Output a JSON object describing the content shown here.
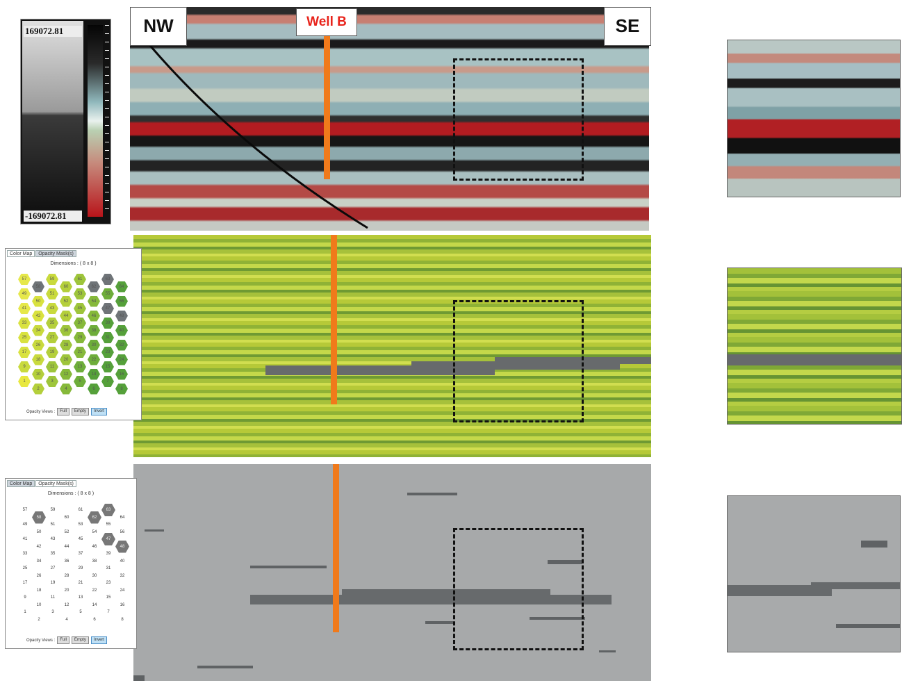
{
  "colorbar": {
    "max_label": "169072.81",
    "min_label": "-169072.81"
  },
  "labels": {
    "nw": "NW",
    "se": "SE",
    "well": "Well B"
  },
  "widget_color": {
    "tab_colormap": "Color Map",
    "tab_opacity": "Opacity Mask(s)",
    "dimensions": "Dimensions : ( 8 x 8 )",
    "opacity_label": "Opacity Views :",
    "btn_full": "Full",
    "btn_empty": "Empty",
    "btn_invert": "Invert"
  },
  "widget_mask": {
    "tab_colormap": "Color Map",
    "tab_opacity": "Opacity Mask(s)",
    "dimensions": "Dimensions : ( 8 x 8 )",
    "opacity_label": "Opacity Views :",
    "btn_full": "Full",
    "btn_empty": "Empty",
    "btn_invert": "Invert"
  },
  "hex_rows": [
    [
      "57",
      "59",
      "61",
      "63"
    ],
    [
      "58",
      "60",
      "62",
      "64"
    ],
    [
      "49",
      "51",
      "53",
      "55"
    ],
    [
      "50",
      "52",
      "54",
      "56"
    ],
    [
      "41",
      "43",
      "45",
      "47"
    ],
    [
      "42",
      "44",
      "46",
      "48"
    ],
    [
      "33",
      "35",
      "37",
      "39"
    ],
    [
      "34",
      "36",
      "38",
      "40"
    ],
    [
      "25",
      "27",
      "29",
      "31"
    ],
    [
      "26",
      "28",
      "30",
      "32"
    ],
    [
      "17",
      "19",
      "21",
      "23"
    ],
    [
      "18",
      "20",
      "22",
      "24"
    ],
    [
      "9",
      "11",
      "13",
      "15"
    ],
    [
      "10",
      "12",
      "14",
      "16"
    ],
    [
      "1",
      "3",
      "5",
      "7"
    ],
    [
      "2",
      "4",
      "6",
      "8"
    ]
  ],
  "colors": {
    "well": "#f07a1b",
    "well_label": "#e8231b",
    "mask_bg": "#a7a9aa",
    "mask_geobody": "#676a6c"
  }
}
